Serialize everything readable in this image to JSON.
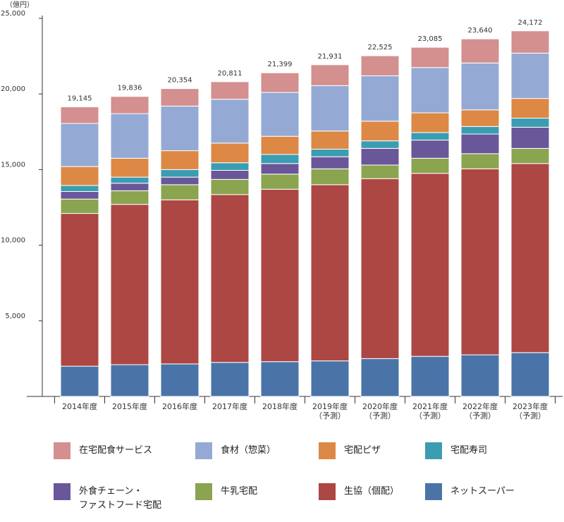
{
  "chart_data": {
    "type": "bar",
    "stacked": true,
    "unit_label": "（億円）",
    "categories": [
      [
        "2014年度"
      ],
      [
        "2015年度"
      ],
      [
        "2016年度"
      ],
      [
        "2017年度"
      ],
      [
        "2018年度"
      ],
      [
        "2019年度",
        "（予測）"
      ],
      [
        "2020年度",
        "（予測）"
      ],
      [
        "2021年度",
        "（予測）"
      ],
      [
        "2022年度",
        "（予測）"
      ],
      [
        "2023年度",
        "（予測）"
      ]
    ],
    "totals": [
      19145,
      19836,
      20354,
      20811,
      21399,
      21931,
      22525,
      23085,
      23640,
      24172
    ],
    "total_labels": [
      "19,145",
      "19,836",
      "20,354",
      "20,811",
      "21,399",
      "21,931",
      "22,525",
      "23,085",
      "23,640",
      "24,172"
    ],
    "ylim": [
      0,
      25000
    ],
    "yticks": [
      5000,
      10000,
      15000,
      20000,
      25000
    ],
    "ytick_labels": [
      "5,000",
      "10,000",
      "15,000",
      "20,000",
      "25,000"
    ],
    "grid": false,
    "legend_position": "bottom",
    "series": [
      {
        "name": "ネットスーパー",
        "color": "#4a74a7",
        "values": [
          2000,
          2100,
          2150,
          2250,
          2300,
          2350,
          2500,
          2650,
          2750,
          2900
        ]
      },
      {
        "name": "生協（個配）",
        "color": "#ad4744",
        "values": [
          10100,
          10600,
          10850,
          11100,
          11400,
          11650,
          11900,
          12100,
          12300,
          12500
        ]
      },
      {
        "name": "牛乳宅配",
        "color": "#8aa44f",
        "values": [
          950,
          900,
          1000,
          1000,
          1000,
          1050,
          900,
          1000,
          1000,
          1000
        ]
      },
      {
        "name": "外食チェーン・\nファストフード宅配",
        "color": "#6a579a",
        "values": [
          500,
          500,
          500,
          600,
          700,
          800,
          1100,
          1200,
          1300,
          1400
        ]
      },
      {
        "name": "宅配寿司",
        "color": "#3b9db1",
        "values": [
          400,
          400,
          500,
          500,
          600,
          500,
          500,
          500,
          500,
          600
        ]
      },
      {
        "name": "宅配ピザ",
        "color": "#dd8845",
        "values": [
          1250,
          1250,
          1250,
          1300,
          1200,
          1200,
          1300,
          1300,
          1100,
          1300
        ]
      },
      {
        "name": "食材（惣菜）",
        "color": "#94aad5",
        "values": [
          2850,
          2950,
          2950,
          2900,
          2900,
          3000,
          3000,
          3000,
          3100,
          3000
        ]
      },
      {
        "name": "在宅配食サービス",
        "color": "#d48f8f",
        "values": [
          1095,
          1136,
          1154,
          1161,
          1299,
          1381,
          1325,
          1335,
          1590,
          1472
        ]
      }
    ]
  },
  "legend": {
    "order": [
      7,
      6,
      5,
      4,
      3,
      2,
      1,
      0
    ]
  }
}
